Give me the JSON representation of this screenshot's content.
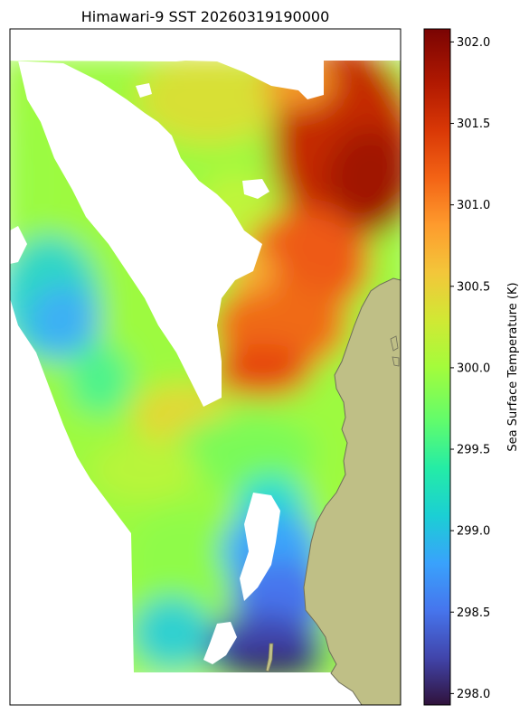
{
  "title": "Himawari-9 SST 20260319190000",
  "colorbar": {
    "label": "Sea Surface Temperature (K)",
    "min": 297.93,
    "max": 302.08,
    "ticks": [
      "298.0",
      "298.5",
      "299.0",
      "299.5",
      "300.0",
      "300.5",
      "301.0",
      "301.5",
      "302.0"
    ],
    "colormap": "turbo"
  },
  "land_color": "#bfbf86",
  "no_data_color": "#ffffff",
  "chart_data": {
    "type": "heatmap",
    "title": "Himawari-9 SST 20260319190000",
    "value_label": "Sea Surface Temperature (K)",
    "value_range": [
      297.93,
      302.08
    ],
    "colormap": "turbo",
    "regions": [
      {
        "area": "upper-right (northeast) offshore",
        "approx_value_K": 301.7
      },
      {
        "area": "upper-center",
        "approx_value_K": 300.4
      },
      {
        "area": "middle-right near coast",
        "approx_value_K": 301.0
      },
      {
        "area": "left coastal band",
        "approx_value_K": 299.7
      },
      {
        "area": "left mid-west",
        "approx_value_K": 299.0
      },
      {
        "area": "center band",
        "approx_value_K": 299.8
      },
      {
        "area": "lower-center",
        "approx_value_K": 298.6
      },
      {
        "area": "bottom near coast",
        "approx_value_K": 298.1
      }
    ],
    "grid": false,
    "colorbar_position": "right"
  }
}
